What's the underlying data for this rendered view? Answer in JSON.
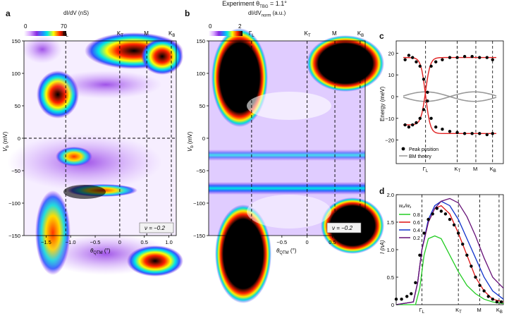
{
  "figure": {
    "super_title": "Experiment θ",
    "super_title_sub": "TBG",
    "super_title_rest": " = 1.1°",
    "panel_a": {
      "letter": "a",
      "cbar_title": "dI/dV (nS)",
      "cbar_min": "0",
      "cbar_max": "70",
      "ylabel": "V",
      "ylabel_sub": "b",
      "ylabel_unit": " (mV)",
      "xlabel": "θ",
      "xlabel_sub": "QTM",
      "xlabel_unit": " (°)",
      "filling": "ν = −0.2",
      "yticks": [
        "150",
        "100",
        "50",
        "0",
        "−50",
        "−100",
        "−150"
      ],
      "xticks": [
        "−1.5",
        "−1.0",
        "−0.5",
        "0",
        "0.5",
        "1.0"
      ],
      "top_labels": [
        "Γ",
        "K",
        "M",
        "K"
      ],
      "top_label_subs": [
        "L",
        "T",
        "",
        "B"
      ]
    },
    "panel_b": {
      "letter": "b",
      "cbar_title": "dI/dV",
      "cbar_title_sub": "norm",
      "cbar_title_rest": " (a.u.)",
      "cbar_min": "0",
      "cbar_max": "2",
      "ylabel": "V",
      "ylabel_sub": "b",
      "ylabel_unit": " (mV)",
      "xlabel": "θ",
      "xlabel_sub": "QTM",
      "xlabel_unit": " (°)",
      "filling": "ν = −0.2",
      "yticks": [
        "150",
        "100",
        "50",
        "0",
        "−50",
        "−100",
        "−150"
      ],
      "xticks": [
        "−1.5",
        "−1.0",
        "−0.5",
        "0",
        "0.5",
        "1.0"
      ],
      "top_labels": [
        "Γ",
        "K",
        "M",
        "K"
      ],
      "top_label_subs": [
        "L",
        "T",
        "",
        "B"
      ]
    },
    "panel_c": {
      "letter": "c",
      "ylabel": "Energy (meV)",
      "yticks": [
        "20",
        "10",
        "0",
        "−10",
        "−20"
      ],
      "bottom_labels": [
        "Γ",
        "K",
        "M",
        "K"
      ],
      "bottom_label_subs": [
        "L",
        "T",
        "",
        "B"
      ],
      "legend": [
        "Peak position",
        "BM theory"
      ]
    },
    "panel_d": {
      "letter": "d",
      "ylabel": "I (nA)",
      "yticks": [
        "2.0",
        "1.5",
        "1.0",
        "0.5",
        "0"
      ],
      "bottom_labels": [
        "Γ",
        "K",
        "M",
        "K"
      ],
      "bottom_label_subs": [
        "L",
        "T",
        "",
        "B"
      ],
      "legend_title": "w₀/w₁",
      "legend": [
        {
          "label": "0.8",
          "color": "#22cc22"
        },
        {
          "label": "0.6",
          "color": "#dd1111"
        },
        {
          "label": "0.4",
          "color": "#1133cc"
        },
        {
          "label": "0.2",
          "color": "#661177"
        }
      ]
    }
  },
  "chart_data": [
    {
      "type": "heatmap",
      "title": "dI/dV (nS)",
      "xlabel": "θQTM (°)",
      "ylabel": "Vb (mV)",
      "xlim": [
        -1.95,
        1.15
      ],
      "ylim": [
        -150,
        150
      ],
      "colorbar_range": [
        0,
        70
      ],
      "high_points_sym": [
        [
          -1.1,
          92
        ],
        [
          -0.25,
          5
        ],
        [
          0.4,
          118
        ],
        [
          -0.2,
          -15
        ],
        [
          -1.3,
          -40
        ],
        [
          0.5,
          -130
        ]
      ],
      "dashed_lines_x": [
        -1.1,
        0,
        0.55,
        1.05
      ],
      "dashed_line_y": 0
    },
    {
      "type": "heatmap",
      "title": "dI/dVnorm (a.u.)",
      "xlabel": "θQTM (°)",
      "ylabel": "Vb (mV)",
      "xlim": [
        -1.95,
        1.15
      ],
      "ylim": [
        -150,
        150
      ],
      "colorbar_range": [
        0,
        2
      ],
      "dashed_lines_x": [
        -1.1,
        0,
        0.55,
        1.05
      ]
    },
    {
      "type": "scatter",
      "ylabel": "Energy (meV)",
      "ylim": [
        -25,
        25
      ],
      "series": [
        {
          "name": "Peak position",
          "x": [
            0.02,
            0.06,
            0.1,
            0.14,
            0.18,
            0.22,
            0.26,
            0.3,
            0.35,
            0.42,
            0.5,
            0.58,
            0.66,
            0.74,
            0.82,
            0.9,
            0.96
          ],
          "upper": [
            17,
            19,
            18,
            16,
            14,
            8,
            2,
            14,
            16,
            17,
            18,
            18,
            18.5,
            18.5,
            18,
            18,
            17
          ],
          "lower": [
            -13,
            -14,
            -13,
            -12,
            -10,
            -6,
            -2,
            -10,
            -14,
            -15,
            -16,
            -16.5,
            -17,
            -17,
            -17,
            -17.5,
            -17
          ]
        },
        {
          "name": "BM theory"
        }
      ]
    },
    {
      "type": "line",
      "ylabel": "I (nA)",
      "ylim": [
        0,
        2.0
      ],
      "legend_title": "w₀/w₁",
      "series": [
        {
          "name": "0.8",
          "x": [
            0,
            0.18,
            0.22,
            0.26,
            0.3,
            0.36,
            0.42,
            0.5,
            0.58,
            0.66,
            0.74,
            0.82,
            0.9,
            1
          ],
          "values": [
            0,
            0,
            0.3,
            0.9,
            1.2,
            1.25,
            1.2,
            0.9,
            0.6,
            0.35,
            0.2,
            0.1,
            0.05,
            0.02
          ]
        },
        {
          "name": "0.6",
          "x": [
            0,
            0.16,
            0.2,
            0.24,
            0.3,
            0.36,
            0.42,
            0.5,
            0.58,
            0.66,
            0.74,
            0.82,
            0.9,
            1
          ],
          "values": [
            0,
            0.05,
            0.4,
            1.0,
            1.5,
            1.75,
            1.8,
            1.65,
            1.3,
            0.9,
            0.5,
            0.25,
            0.1,
            0.05
          ]
        },
        {
          "name": "0.4",
          "x": [
            0,
            0.16,
            0.2,
            0.24,
            0.3,
            0.36,
            0.42,
            0.5,
            0.58,
            0.66,
            0.74,
            0.82,
            0.9,
            1
          ],
          "values": [
            0,
            0.05,
            0.4,
            1.0,
            1.55,
            1.8,
            1.88,
            1.8,
            1.55,
            1.2,
            0.85,
            0.5,
            0.25,
            0.1
          ]
        },
        {
          "name": "0.2",
          "x": [
            0,
            0.16,
            0.2,
            0.24,
            0.3,
            0.36,
            0.42,
            0.5,
            0.58,
            0.66,
            0.74,
            0.82,
            0.9,
            1
          ],
          "values": [
            0,
            0.05,
            0.4,
            1.0,
            1.5,
            1.75,
            1.88,
            1.93,
            1.85,
            1.6,
            1.25,
            0.85,
            0.5,
            0.3
          ]
        },
        {
          "name": "data",
          "x": [
            0,
            0.05,
            0.1,
            0.14,
            0.18,
            0.22,
            0.26,
            0.3,
            0.34,
            0.38,
            0.42,
            0.46,
            0.5,
            0.54,
            0.58,
            0.62,
            0.66,
            0.7,
            0.74,
            0.78,
            0.82,
            0.86,
            0.9,
            0.94,
            0.98
          ],
          "values": [
            0.1,
            0.1,
            0.15,
            0.2,
            0.4,
            0.9,
            1.3,
            1.55,
            1.65,
            1.75,
            1.7,
            1.65,
            1.55,
            1.45,
            1.3,
            1.1,
            0.9,
            0.7,
            0.5,
            0.35,
            0.25,
            0.15,
            0.1,
            0.05,
            0.05
          ]
        }
      ]
    }
  ]
}
